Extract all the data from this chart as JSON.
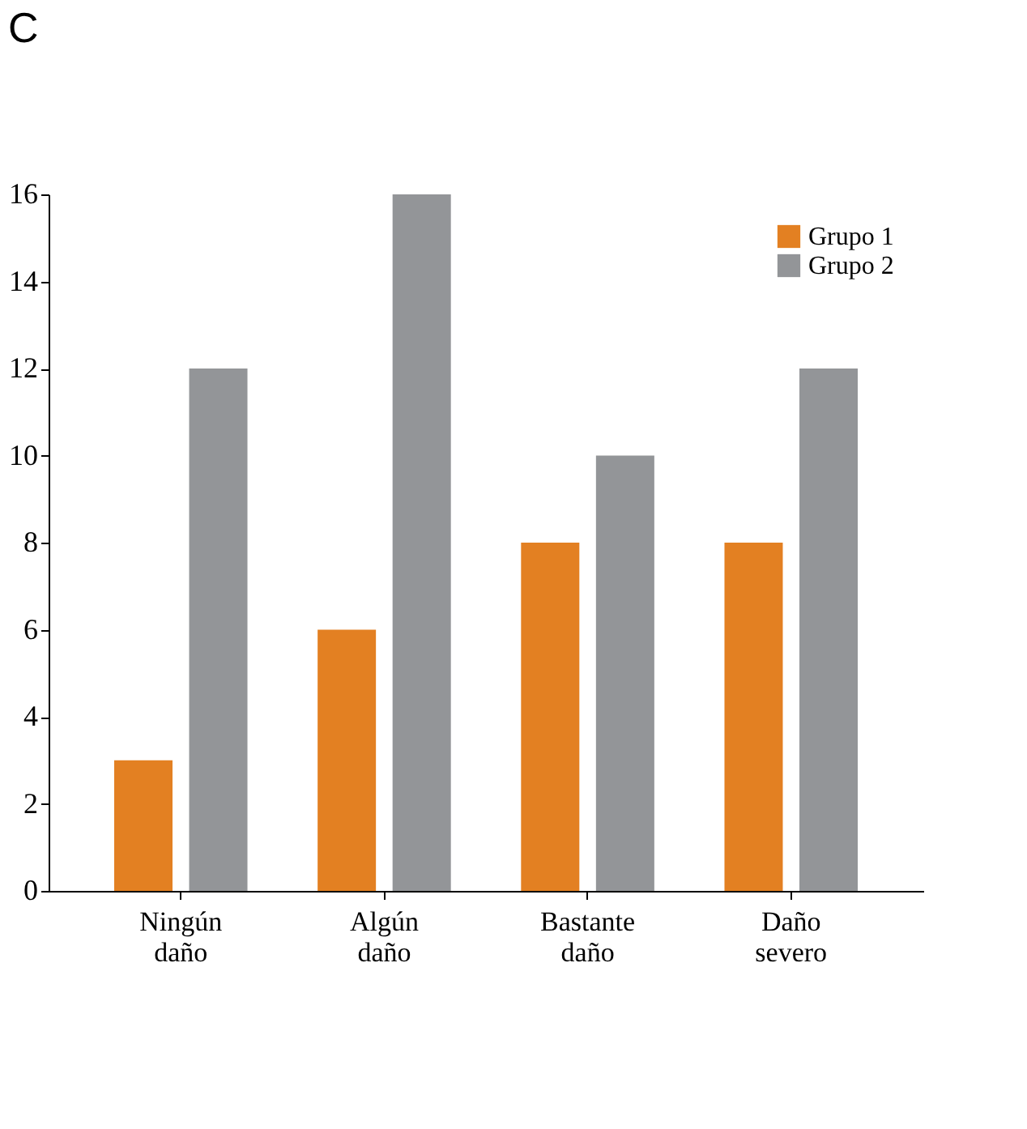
{
  "chart_data": {
    "type": "bar",
    "title": "C",
    "categories": [
      "Ningún daño",
      "Algún daño",
      "Bastante daño",
      "Daño severo"
    ],
    "series": [
      {
        "name": "Grupo 1",
        "color": "#e38022",
        "values": [
          3,
          6,
          8,
          8
        ]
      },
      {
        "name": "Grupo 2",
        "color": "#939598",
        "values": [
          12,
          16,
          10,
          12
        ]
      }
    ],
    "ylim": [
      0,
      16
    ],
    "yticks": [
      0,
      2,
      4,
      6,
      8,
      10,
      12,
      14,
      16
    ],
    "grid": false,
    "legend": "top right"
  }
}
